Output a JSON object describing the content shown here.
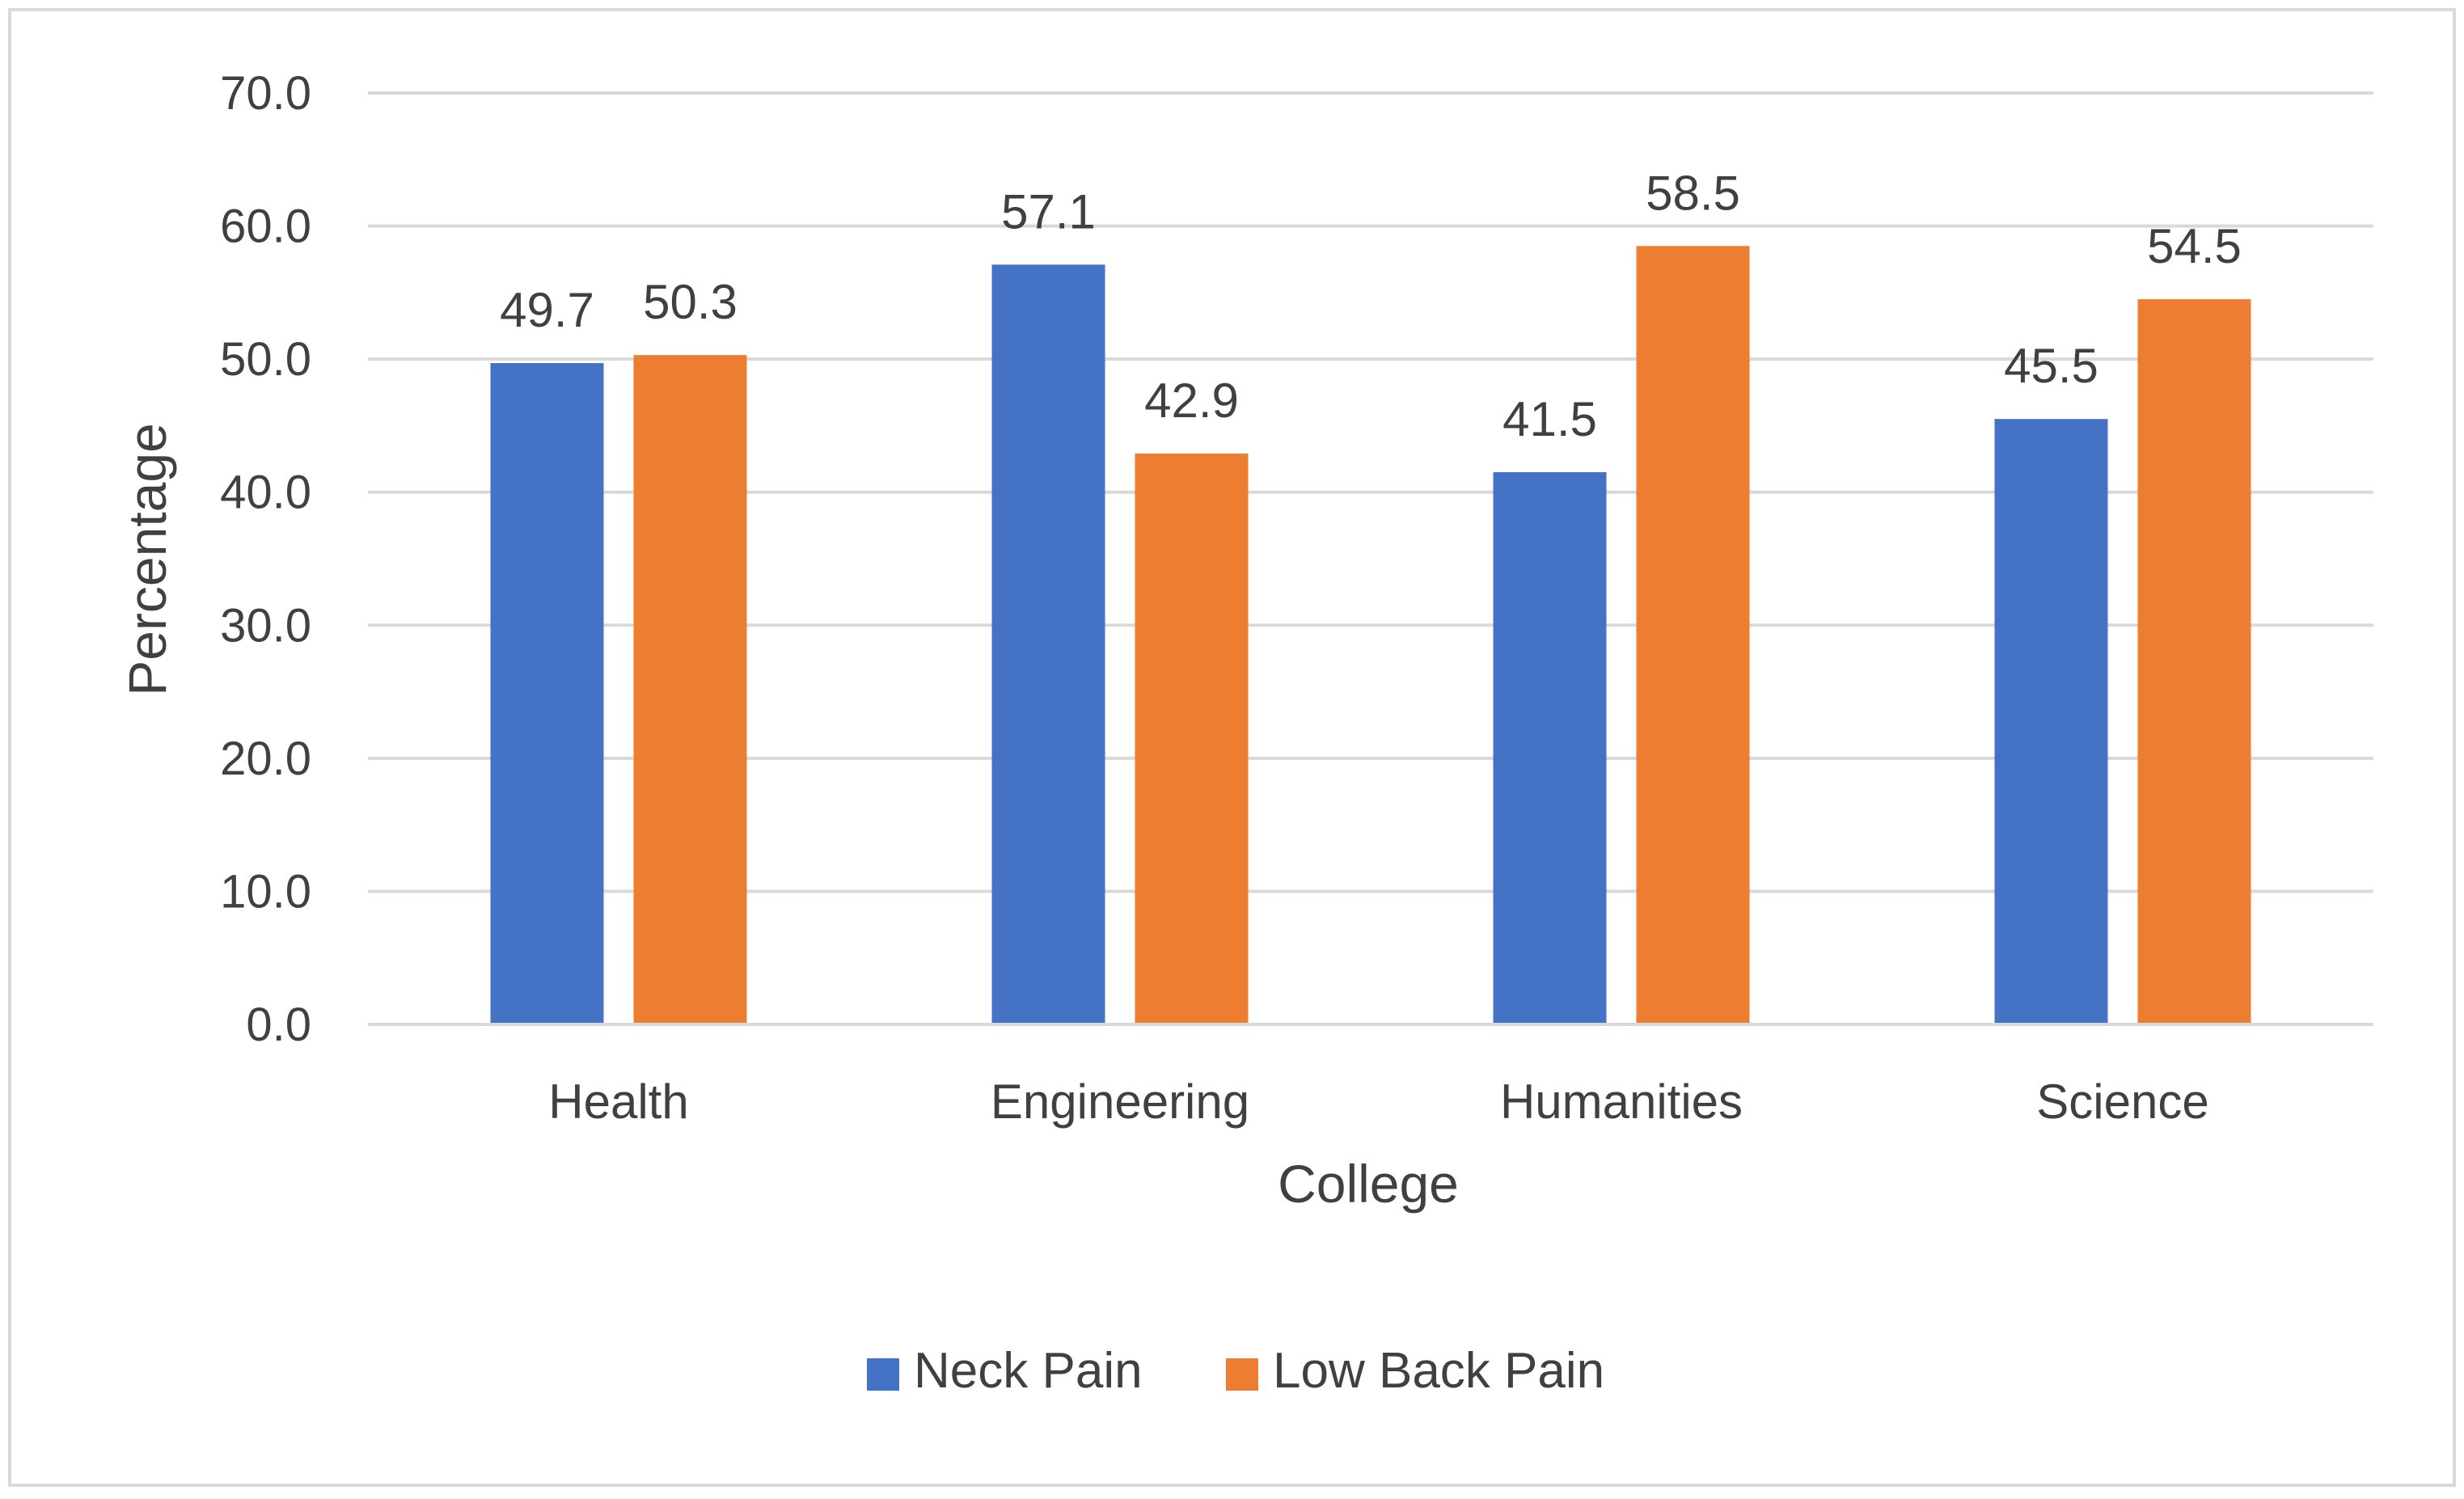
{
  "chart_data": {
    "type": "bar",
    "title": "",
    "xlabel": "College",
    "ylabel": "Percentage",
    "ylim": [
      0,
      70
    ],
    "yticks": [
      0,
      10,
      20,
      30,
      40,
      50,
      60,
      70
    ],
    "ytick_labels": [
      "0.0",
      "10.0",
      "20.0",
      "30.0",
      "40.0",
      "50.0",
      "60.0",
      "70.0"
    ],
    "grid": true,
    "legend_position": "bottom",
    "categories": [
      "Health",
      "Engineering",
      "Humanities",
      "Science"
    ],
    "series": [
      {
        "name": "Neck Pain",
        "color": "#4472C4",
        "values": [
          49.7,
          57.1,
          41.5,
          45.5
        ],
        "labels": [
          "49.7",
          "57.1",
          "41.5",
          "45.5"
        ]
      },
      {
        "name": "Low Back Pain",
        "color": "#ED7D31",
        "values": [
          50.3,
          42.9,
          58.5,
          54.5
        ],
        "labels": [
          "50.3",
          "42.9",
          "58.5",
          "54.5"
        ]
      }
    ]
  }
}
